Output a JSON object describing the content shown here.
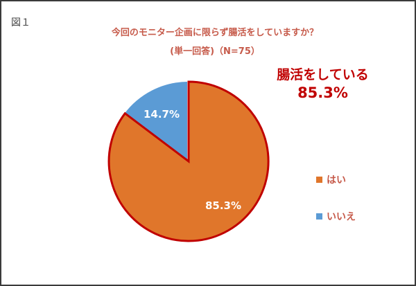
{
  "figure": {
    "label": "図１",
    "title_line1": "今回のモニター企画に限らず腸活をしていますか？",
    "title_line2": "(単一回答)（N=75）",
    "callout_line1": "腸活をしている",
    "callout_line2": "85.3%"
  },
  "legend": [
    {
      "label": "はい",
      "color": "#E0762B"
    },
    {
      "label": "いいえ",
      "color": "#5B9BD5"
    }
  ],
  "slice_labels": {
    "yes": "85.3%",
    "no": "14.7%"
  },
  "colors": {
    "yes": "#E0762B",
    "no": "#5B9BD5",
    "highlight_outline": "#C00000",
    "title": "#C65A4A"
  },
  "chart_data": {
    "type": "pie",
    "title": "今回のモニター企画に限らず腸活をしていますか？ (単一回答)（N=75）",
    "categories": [
      "はい",
      "いいえ"
    ],
    "values": [
      85.3,
      14.7
    ],
    "unit": "%",
    "n": 75,
    "data_labels": [
      "85.3%",
      "14.7%"
    ],
    "highlighted": "はい",
    "annotation": "腸活をしている 85.3%",
    "legend_position": "right",
    "start_angle_deg": 0,
    "direction": "clockwise"
  }
}
